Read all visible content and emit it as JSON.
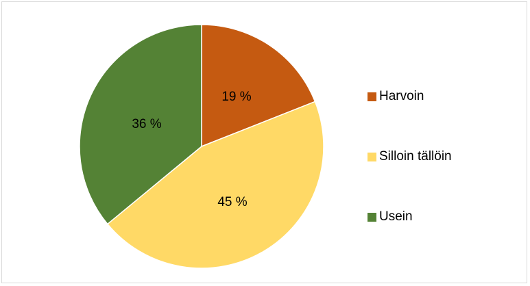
{
  "chart_data": {
    "type": "pie",
    "title": "",
    "slices": [
      {
        "label": "Harvoin",
        "value": 19,
        "display": "19 %",
        "color": "#c55a11"
      },
      {
        "label": "Silloin tällöin",
        "value": 45,
        "display": "45 %",
        "color": "#ffd966"
      },
      {
        "label": "Usein",
        "value": 36,
        "display": "36 %",
        "color": "#548235"
      }
    ],
    "start_angle": "12 o'clock",
    "direction": "clockwise",
    "legend_position": "right"
  }
}
